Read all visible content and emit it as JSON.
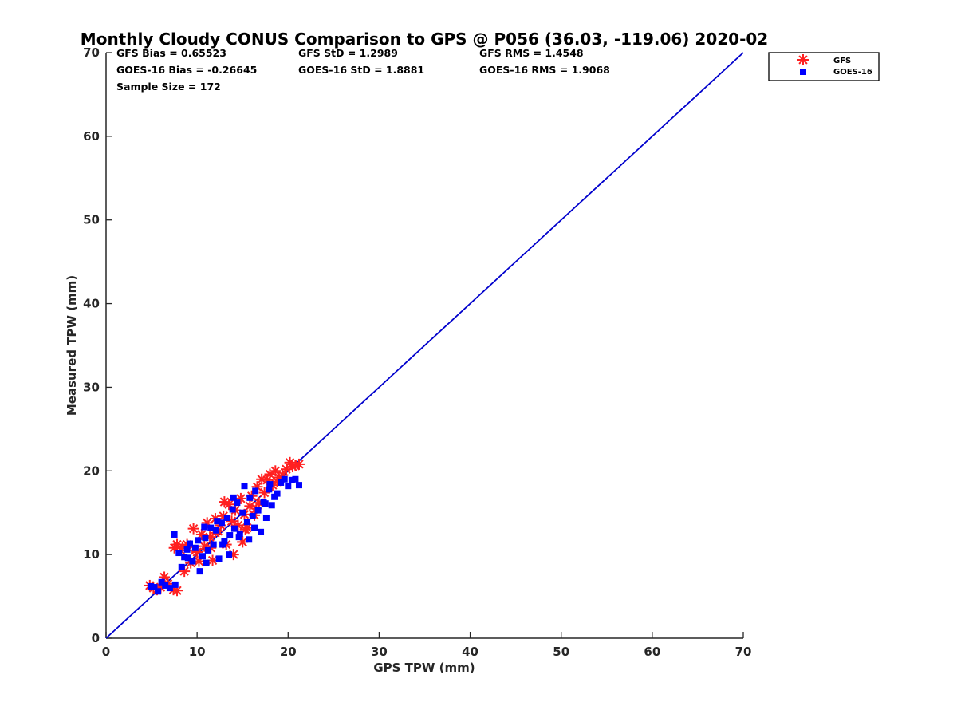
{
  "chart_data": {
    "type": "scatter",
    "title": "Monthly Cloudy CONUS Comparison to GPS @ P056 (36.03, -119.06) 2020-02",
    "xlabel": "GPS TPW (mm)",
    "ylabel": "Measured TPW (mm)",
    "xlim": [
      0,
      70
    ],
    "ylim": [
      0,
      70
    ],
    "xticks": [
      "0",
      "10",
      "20",
      "30",
      "40",
      "50",
      "60",
      "70"
    ],
    "yticks": [
      "0",
      "10",
      "20",
      "30",
      "40",
      "50",
      "60",
      "70"
    ],
    "grid": false,
    "legend_position": "outside top-right",
    "stats": [
      [
        "GFS Bias = 0.65523",
        "GFS StD = 1.2989",
        "GFS RMS = 1.4548"
      ],
      [
        "GOES-16 Bias = -0.26645",
        "GOES-16 StD = 1.8881",
        "GOES-16 RMS = 1.9068"
      ],
      [
        "Sample Size = 172"
      ]
    ],
    "reference_line": {
      "x": [
        0,
        70
      ],
      "y": [
        0,
        70
      ],
      "color": "#0000cc"
    },
    "series": [
      {
        "name": "GFS",
        "marker": "asterisk",
        "color": "#ff2020",
        "points": [
          [
            4.8,
            6.3
          ],
          [
            5.2,
            6.0
          ],
          [
            5.6,
            5.8
          ],
          [
            6.0,
            6.1
          ],
          [
            6.4,
            7.3
          ],
          [
            6.8,
            6.5
          ],
          [
            7.4,
            5.8
          ],
          [
            7.8,
            5.7
          ],
          [
            7.5,
            10.8
          ],
          [
            7.8,
            11.2
          ],
          [
            8.2,
            10.5
          ],
          [
            8.6,
            8.0
          ],
          [
            8.9,
            11.2
          ],
          [
            9.3,
            9.0
          ],
          [
            9.6,
            13.1
          ],
          [
            9.8,
            10.5
          ],
          [
            10.2,
            9.2
          ],
          [
            10.5,
            12.4
          ],
          [
            10.8,
            11.0
          ],
          [
            11.1,
            13.8
          ],
          [
            11.4,
            12.1
          ],
          [
            11.7,
            9.3
          ],
          [
            12.0,
            14.3
          ],
          [
            12.3,
            12.8
          ],
          [
            12.6,
            13.5
          ],
          [
            12.9,
            14.6
          ],
          [
            13.2,
            11.2
          ],
          [
            13.5,
            16.0
          ],
          [
            13.8,
            14.0
          ],
          [
            14.0,
            10.0
          ],
          [
            14.2,
            15.3
          ],
          [
            14.5,
            13.5
          ],
          [
            14.8,
            16.7
          ],
          [
            15.0,
            11.5
          ],
          [
            15.2,
            14.8
          ],
          [
            15.5,
            13.2
          ],
          [
            15.8,
            15.8
          ],
          [
            16.0,
            17.0
          ],
          [
            16.3,
            14.7
          ],
          [
            16.6,
            18.1
          ],
          [
            16.8,
            16.2
          ],
          [
            17.1,
            19.0
          ],
          [
            17.4,
            17.4
          ],
          [
            17.7,
            18.9
          ],
          [
            18.0,
            19.6
          ],
          [
            18.3,
            18.3
          ],
          [
            18.6,
            20.0
          ],
          [
            19.0,
            19.2
          ],
          [
            19.4,
            19.5
          ],
          [
            19.8,
            20.2
          ],
          [
            20.2,
            21.0
          ],
          [
            20.5,
            20.5
          ],
          [
            20.8,
            20.6
          ],
          [
            21.2,
            20.8
          ],
          [
            12.0,
            12.6
          ],
          [
            15.3,
            13.0
          ],
          [
            11.5,
            10.8
          ],
          [
            13.0,
            16.3
          ],
          [
            16.5,
            15.5
          ],
          [
            10.0,
            10.3
          ],
          [
            8.4,
            10.9
          ],
          [
            18.8,
            18.7
          ]
        ]
      },
      {
        "name": "GOES-16",
        "marker": "square",
        "color": "#0000ff",
        "points": [
          [
            4.9,
            6.2
          ],
          [
            5.3,
            6.1
          ],
          [
            5.7,
            5.6
          ],
          [
            6.1,
            6.7
          ],
          [
            6.5,
            6.3
          ],
          [
            7.0,
            6.0
          ],
          [
            7.6,
            6.4
          ],
          [
            7.5,
            12.4
          ],
          [
            8.0,
            10.2
          ],
          [
            8.3,
            8.5
          ],
          [
            8.6,
            9.7
          ],
          [
            8.9,
            10.6
          ],
          [
            9.2,
            11.3
          ],
          [
            9.5,
            9.2
          ],
          [
            9.8,
            10.8
          ],
          [
            10.1,
            11.7
          ],
          [
            10.3,
            8.0
          ],
          [
            10.6,
            9.8
          ],
          [
            10.9,
            12.0
          ],
          [
            11.2,
            10.5
          ],
          [
            11.5,
            13.2
          ],
          [
            11.8,
            11.2
          ],
          [
            12.1,
            12.9
          ],
          [
            12.4,
            9.5
          ],
          [
            12.7,
            13.8
          ],
          [
            13.0,
            11.6
          ],
          [
            13.3,
            14.4
          ],
          [
            13.6,
            12.3
          ],
          [
            13.9,
            15.4
          ],
          [
            14.1,
            13.1
          ],
          [
            14.4,
            16.2
          ],
          [
            14.7,
            12.5
          ],
          [
            15.0,
            15.0
          ],
          [
            15.2,
            18.2
          ],
          [
            15.5,
            13.9
          ],
          [
            15.8,
            16.8
          ],
          [
            16.1,
            14.6
          ],
          [
            16.4,
            17.6
          ],
          [
            16.7,
            15.3
          ],
          [
            17.0,
            12.7
          ],
          [
            17.3,
            16.3
          ],
          [
            17.6,
            14.4
          ],
          [
            17.9,
            17.8
          ],
          [
            18.2,
            15.9
          ],
          [
            18.5,
            16.9
          ],
          [
            18.8,
            17.3
          ],
          [
            19.2,
            18.6
          ],
          [
            19.6,
            19.0
          ],
          [
            20.0,
            18.2
          ],
          [
            20.4,
            18.9
          ],
          [
            20.8,
            19.0
          ],
          [
            21.2,
            18.3
          ],
          [
            12.8,
            11.2
          ],
          [
            14.6,
            12.1
          ],
          [
            16.3,
            13.2
          ],
          [
            11.0,
            9.0
          ],
          [
            13.5,
            10.0
          ],
          [
            15.7,
            11.8
          ],
          [
            9.0,
            9.6
          ],
          [
            10.8,
            13.3
          ],
          [
            17.5,
            16.1
          ],
          [
            14.0,
            16.8
          ],
          [
            12.2,
            14.0
          ],
          [
            18.0,
            18.4
          ]
        ]
      }
    ]
  }
}
